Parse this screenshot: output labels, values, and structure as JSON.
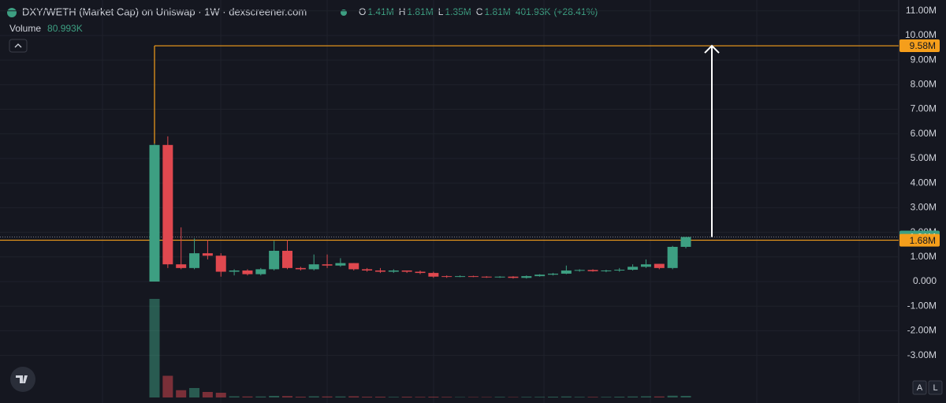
{
  "chart_data": {
    "type": "candlestick",
    "title": "DXY/WETH (Market Cap) on Uniswap · 1W · dexscreener.com",
    "legend": [
      {
        "key": "O",
        "value": 1410000,
        "label": "1.41M"
      },
      {
        "key": "H",
        "value": 1810000,
        "label": "1.81M"
      },
      {
        "key": "L",
        "value": 1350000,
        "label": "1.35M"
      },
      {
        "key": "C",
        "value": 1810000,
        "label": "1.81M"
      }
    ],
    "change": {
      "value": 401930,
      "label": "401.93K"
    },
    "change_pct": {
      "value": 28.41,
      "label": "(+28.41%)"
    },
    "volume_title": "Volume",
    "volume_last": {
      "value": 80993,
      "label": "80.993K"
    },
    "open": [
      0,
      5550000,
      700000,
      550000,
      1150000,
      1050000,
      400000,
      450000,
      300000,
      500000,
      1250000,
      550000,
      500000,
      700000,
      650000,
      750000,
      500000,
      450000,
      400000,
      450000,
      400000,
      350000,
      220000,
      200000,
      220000,
      200000,
      180000,
      200000,
      150000,
      220000,
      280000,
      320000,
      450000,
      470000,
      420000,
      450000,
      480000,
      600000,
      720000,
      550000,
      1410000
    ],
    "high": [
      5600000,
      5900000,
      2200000,
      1750000,
      1700000,
      1150000,
      500000,
      500000,
      550000,
      1650000,
      1700000,
      600000,
      1100000,
      1100000,
      950000,
      750000,
      550000,
      550000,
      500000,
      450000,
      450000,
      400000,
      250000,
      250000,
      240000,
      220000,
      220000,
      220000,
      250000,
      300000,
      350000,
      650000,
      500000,
      500000,
      480000,
      550000,
      700000,
      900000,
      720000,
      1450000,
      1810000
    ],
    "low": [
      0,
      550000,
      500000,
      500000,
      900000,
      200000,
      250000,
      250000,
      250000,
      450000,
      500000,
      450000,
      450000,
      550000,
      600000,
      450000,
      400000,
      350000,
      350000,
      350000,
      300000,
      150000,
      150000,
      180000,
      180000,
      150000,
      150000,
      120000,
      120000,
      200000,
      250000,
      300000,
      400000,
      400000,
      380000,
      400000,
      450000,
      550000,
      500000,
      500000,
      1350000
    ],
    "close": [
      5550000,
      700000,
      550000,
      1150000,
      1050000,
      400000,
      450000,
      300000,
      500000,
      1250000,
      550000,
      500000,
      700000,
      650000,
      750000,
      500000,
      450000,
      400000,
      450000,
      400000,
      350000,
      200000,
      200000,
      220000,
      200000,
      180000,
      200000,
      150000,
      220000,
      280000,
      320000,
      450000,
      470000,
      420000,
      450000,
      480000,
      600000,
      700000,
      550000,
      1410000,
      1810000
    ],
    "volume": [
      5000000,
      1100000,
      370000,
      480000,
      280000,
      240000,
      60000,
      50000,
      50000,
      80000,
      70000,
      40000,
      60000,
      50000,
      50000,
      60000,
      40000,
      40000,
      30000,
      40000,
      30000,
      40000,
      30000,
      20000,
      20000,
      20000,
      30000,
      20000,
      30000,
      30000,
      40000,
      50000,
      30000,
      30000,
      30000,
      40000,
      50000,
      60000,
      50000,
      90000,
      80993
    ],
    "up_color": "#3d9f82",
    "down_color": "#e0484f",
    "ylim": [
      -4710000,
      11440000
    ],
    "yticks": [
      {
        "value": 11000000,
        "label": "11.00M"
      },
      {
        "value": 10000000,
        "label": "10.00M"
      },
      {
        "value": 9000000,
        "label": "9.00M"
      },
      {
        "value": 8000000,
        "label": "8.00M"
      },
      {
        "value": 7000000,
        "label": "7.00M"
      },
      {
        "value": 6000000,
        "label": "6.00M"
      },
      {
        "value": 5000000,
        "label": "5.00M"
      },
      {
        "value": 4000000,
        "label": "4.00M"
      },
      {
        "value": 3000000,
        "label": "3.00M"
      },
      {
        "value": 2000000,
        "label": "2.00M"
      },
      {
        "value": 1000000,
        "label": "1.00M"
      },
      {
        "value": 0,
        "label": "0.000"
      },
      {
        "value": -1000000,
        "label": "-1.00M"
      },
      {
        "value": -2000000,
        "label": "-2.00M"
      },
      {
        "value": -3000000,
        "label": "-3.00M"
      }
    ],
    "grid": true,
    "price_lines": [
      {
        "value": 9580000,
        "label": "9.58M",
        "color": "#f59e1b"
      },
      {
        "value": 1810000,
        "label": "1.81M",
        "color": "#3d9f82"
      },
      {
        "value": 1680000,
        "label": "1.68M",
        "color": "#f59e1b"
      }
    ],
    "buttons": [
      "A",
      "L"
    ]
  }
}
